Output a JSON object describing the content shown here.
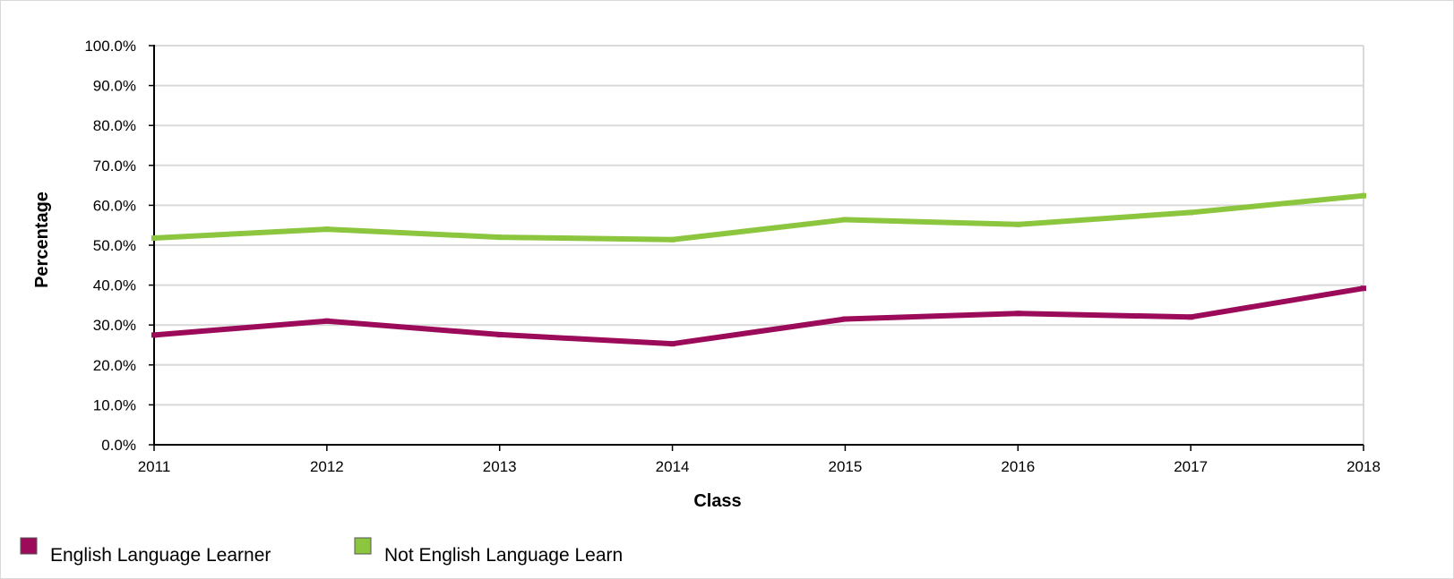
{
  "chart_data": {
    "type": "line",
    "title": "",
    "xlabel": "Class",
    "ylabel": "Percentage",
    "x": [
      "2011",
      "2012",
      "2013",
      "2014",
      "2015",
      "2016",
      "2017",
      "2018"
    ],
    "ylim": [
      0,
      100
    ],
    "y_ticks": [
      "0.0%",
      "10.0%",
      "20.0%",
      "30.0%",
      "40.0%",
      "50.0%",
      "60.0%",
      "70.0%",
      "80.0%",
      "90.0%",
      "100.0%"
    ],
    "grid": true,
    "legend_position": "bottom-left",
    "series": [
      {
        "name": "English Language Learner",
        "color": "#9b0b5a",
        "values": [
          27.5,
          31.0,
          27.6,
          25.3,
          31.5,
          32.9,
          32.0,
          39.2
        ]
      },
      {
        "name": "Not English Language Learn",
        "color": "#8cc63f",
        "values": [
          51.8,
          54.0,
          52.0,
          51.4,
          56.4,
          55.2,
          58.2,
          62.4
        ]
      }
    ]
  }
}
